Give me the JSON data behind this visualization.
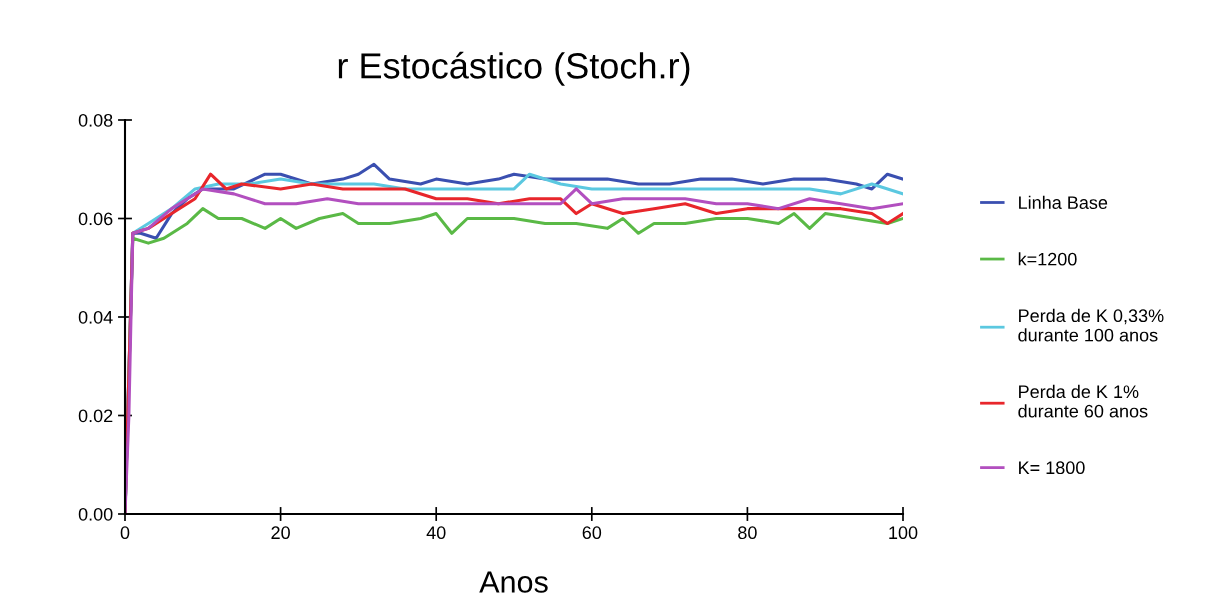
{
  "chart_data": {
    "type": "line",
    "title": "r Estocástico (Stoch.r)",
    "xlabel": "Anos",
    "xlim": [
      0,
      100
    ],
    "xticks": [
      0,
      20,
      40,
      60,
      80,
      100
    ],
    "ylim": [
      0,
      0.08
    ],
    "yticks": [
      {
        "value": 0,
        "label": "0.00"
      },
      {
        "value": 0.02,
        "label": "0.02"
      },
      {
        "value": 0.04,
        "label": "0.04"
      },
      {
        "value": 0.06,
        "label": "0.06"
      },
      {
        "value": 0.08,
        "label": "0.08"
      }
    ],
    "grid": false,
    "legend": "right",
    "marker": "none",
    "line_style": "solid",
    "series": [
      {
        "name": "Linha Base",
        "color": "#3a4fb0",
        "x": [
          0,
          1,
          2,
          4,
          6,
          8,
          10,
          14,
          18,
          20,
          24,
          28,
          30,
          32,
          34,
          38,
          40,
          44,
          48,
          50,
          54,
          58,
          62,
          66,
          70,
          74,
          78,
          82,
          86,
          90,
          94,
          96,
          98,
          100
        ],
        "values": [
          0,
          0.057,
          0.057,
          0.056,
          0.061,
          0.064,
          0.066,
          0.066,
          0.069,
          0.069,
          0.067,
          0.068,
          0.069,
          0.071,
          0.068,
          0.067,
          0.068,
          0.067,
          0.068,
          0.069,
          0.068,
          0.068,
          0.068,
          0.067,
          0.067,
          0.068,
          0.068,
          0.067,
          0.068,
          0.068,
          0.067,
          0.066,
          0.069,
          0.068
        ]
      },
      {
        "name": "k=1200",
        "color": "#5ab946",
        "x": [
          0,
          1,
          3,
          5,
          8,
          10,
          12,
          15,
          18,
          20,
          22,
          25,
          28,
          30,
          34,
          38,
          40,
          42,
          44,
          50,
          54,
          58,
          62,
          64,
          66,
          68,
          72,
          76,
          80,
          84,
          86,
          88,
          90,
          94,
          98,
          100
        ],
        "values": [
          0,
          0.056,
          0.055,
          0.056,
          0.059,
          0.062,
          0.06,
          0.06,
          0.058,
          0.06,
          0.058,
          0.06,
          0.061,
          0.059,
          0.059,
          0.06,
          0.061,
          0.057,
          0.06,
          0.06,
          0.059,
          0.059,
          0.058,
          0.06,
          0.057,
          0.059,
          0.059,
          0.06,
          0.06,
          0.059,
          0.061,
          0.058,
          0.061,
          0.06,
          0.059,
          0.06
        ]
      },
      {
        "name": "Perda de K 0,33%\ndurante 100 anos",
        "color": "#5bc8e0",
        "x": [
          0,
          1,
          3,
          6,
          9,
          12,
          16,
          20,
          24,
          28,
          32,
          36,
          40,
          44,
          50,
          52,
          56,
          60,
          64,
          68,
          72,
          76,
          80,
          84,
          88,
          92,
          96,
          100
        ],
        "values": [
          0,
          0.057,
          0.059,
          0.062,
          0.066,
          0.067,
          0.067,
          0.068,
          0.067,
          0.067,
          0.067,
          0.066,
          0.066,
          0.066,
          0.066,
          0.069,
          0.067,
          0.066,
          0.066,
          0.066,
          0.066,
          0.066,
          0.066,
          0.066,
          0.066,
          0.065,
          0.067,
          0.065
        ]
      },
      {
        "name": "Perda de K 1%\ndurante 60 anos",
        "color": "#e8262b",
        "x": [
          0,
          1,
          3,
          6,
          9,
          11,
          13,
          15,
          20,
          24,
          28,
          32,
          36,
          40,
          44,
          48,
          52,
          56,
          58,
          60,
          64,
          68,
          72,
          76,
          80,
          84,
          88,
          92,
          96,
          98,
          100
        ],
        "values": [
          0,
          0.057,
          0.058,
          0.061,
          0.064,
          0.069,
          0.066,
          0.067,
          0.066,
          0.067,
          0.066,
          0.066,
          0.066,
          0.064,
          0.064,
          0.063,
          0.064,
          0.064,
          0.061,
          0.063,
          0.061,
          0.062,
          0.063,
          0.061,
          0.062,
          0.062,
          0.062,
          0.062,
          0.061,
          0.059,
          0.061
        ]
      },
      {
        "name": "K= 1800",
        "color": "#b24fbf",
        "x": [
          0,
          0.5,
          1,
          3,
          6,
          8,
          10,
          14,
          18,
          22,
          26,
          30,
          34,
          38,
          42,
          46,
          50,
          56,
          58,
          60,
          64,
          68,
          72,
          76,
          80,
          84,
          88,
          92,
          96,
          100
        ],
        "values": [
          0,
          0.02,
          0.057,
          0.058,
          0.062,
          0.064,
          0.066,
          0.065,
          0.063,
          0.063,
          0.064,
          0.063,
          0.063,
          0.063,
          0.063,
          0.063,
          0.063,
          0.063,
          0.066,
          0.063,
          0.064,
          0.064,
          0.064,
          0.063,
          0.063,
          0.062,
          0.064,
          0.063,
          0.062,
          0.063
        ]
      }
    ]
  }
}
